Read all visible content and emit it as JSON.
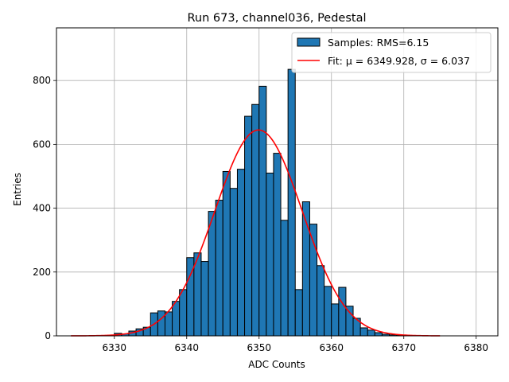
{
  "chart_data": {
    "type": "bar",
    "title": "Run 673, channel036, Pedestal",
    "xlabel": "ADC Counts",
    "ylabel": "Entries",
    "xlim": [
      6322,
      6383
    ],
    "ylim": [
      0,
      965
    ],
    "xticks": [
      6330,
      6340,
      6350,
      6360,
      6370,
      6380
    ],
    "yticks": [
      0,
      200,
      400,
      600,
      800
    ],
    "grid": true,
    "legend_position": "top-right",
    "bar_color": "#1f77b4",
    "fit_color": "#ff0000",
    "series": [
      {
        "name": "Samples: RMS=6.15",
        "bin_width": 1,
        "bin_starts": [
          6330,
          6331,
          6332,
          6333,
          6334,
          6335,
          6336,
          6337,
          6338,
          6339,
          6340,
          6341,
          6342,
          6343,
          6344,
          6345,
          6346,
          6347,
          6348,
          6349,
          6350,
          6351,
          6352,
          6353,
          6354,
          6355,
          6356,
          6357,
          6358,
          6359,
          6360,
          6361,
          6362,
          6363,
          6364,
          6365,
          6366,
          6367,
          6368,
          6369,
          6370
        ],
        "values": [
          8,
          6,
          15,
          22,
          27,
          72,
          78,
          75,
          108,
          145,
          245,
          260,
          233,
          390,
          425,
          515,
          462,
          522,
          688,
          725,
          782,
          510,
          572,
          362,
          835,
          145,
          420,
          350,
          220,
          155,
          100,
          152,
          93,
          55,
          25,
          18,
          10,
          5,
          3,
          2,
          1
        ]
      }
    ],
    "fit": {
      "label": "Fit: μ = 6349.928, σ = 6.037",
      "mu": 6349.928,
      "sigma": 6.037,
      "amplitude": 645,
      "x_range": [
        6324,
        6375
      ]
    }
  }
}
